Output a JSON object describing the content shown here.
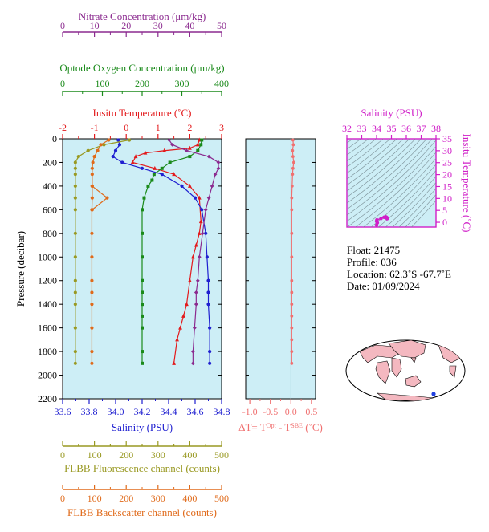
{
  "colors": {
    "nitrate": "#8b2a8f",
    "oxygen": "#1a8a1a",
    "temperature": "#e31a1c",
    "salinity": "#1f1fd0",
    "fluorescence": "#999922",
    "backscatter": "#e06a1a",
    "delta_t": "#f07070",
    "ts_axis": "#d01fc8",
    "panel_bg": "#cdeef6"
  },
  "chart_data": [
    {
      "type": "line",
      "name": "main-profile",
      "ylabel": "Pressure (decibar)",
      "ylim": [
        2200,
        0
      ],
      "yticks": [
        "0",
        "200",
        "400",
        "600",
        "800",
        "1000",
        "1200",
        "1400",
        "1600",
        "1800",
        "2000",
        "2200"
      ],
      "axes": {
        "nitrate": {
          "label": "Nitrate Concentration (μm/kg)",
          "ticks": [
            "0",
            "10",
            "20",
            "30",
            "40",
            "50"
          ],
          "lim": [
            0,
            50
          ]
        },
        "oxygen": {
          "label": "Optode Oxygen Concentration (μm/kg)",
          "ticks": [
            "0",
            "100",
            "200",
            "300",
            "400"
          ],
          "lim": [
            0,
            400
          ]
        },
        "temperature": {
          "label": "Insitu Temperature (˚C)",
          "ticks": [
            "-2",
            "-1",
            "0",
            "1",
            "2",
            "3"
          ],
          "lim": [
            -2,
            3
          ]
        },
        "salinity": {
          "label": "Salinity (PSU)",
          "ticks": [
            "33.6",
            "33.8",
            "34.0",
            "34.2",
            "34.4",
            "34.6",
            "34.8"
          ],
          "lim": [
            33.6,
            34.8
          ]
        },
        "fluorescence": {
          "label": "FLBB Fluorescence channel (counts)",
          "ticks": [
            "0",
            "50",
            "100",
            "150",
            "200",
            "250",
            "300",
            "350",
            "400",
            "450",
            "500"
          ],
          "lim": [
            0,
            500
          ]
        },
        "backscatter": {
          "label": "FLBB Backscatter channel (counts)",
          "ticks": [
            "0",
            "100",
            "200",
            "300",
            "400",
            "500"
          ],
          "lim": [
            0,
            500
          ]
        }
      },
      "series": [
        {
          "key": "temperature",
          "marker": "triangle",
          "x": [
            2.3,
            2.25,
            2.0,
            1.2,
            0.6,
            0.3,
            0.2,
            0.9,
            1.5,
            2.0,
            2.3,
            2.35,
            2.3,
            2.2,
            2.1,
            2.0,
            1.9,
            1.8,
            1.7,
            1.6,
            1.5
          ],
          "y": [
            10,
            50,
            80,
            100,
            120,
            150,
            200,
            250,
            300,
            400,
            500,
            700,
            800,
            900,
            1000,
            1200,
            1400,
            1500,
            1600,
            1700,
            1900
          ]
        },
        {
          "key": "salinity",
          "marker": "circle",
          "x": [
            34.02,
            34.03,
            34.0,
            33.98,
            34.05,
            34.2,
            34.35,
            34.5,
            34.6,
            34.65,
            34.68,
            34.69,
            34.7,
            34.7,
            34.7,
            34.71,
            34.71,
            34.71
          ],
          "y": [
            10,
            50,
            100,
            150,
            200,
            250,
            300,
            400,
            500,
            600,
            800,
            1000,
            1200,
            1300,
            1400,
            1600,
            1800,
            1900
          ]
        },
        {
          "key": "oxygen",
          "marker": "square",
          "x": [
            350,
            348,
            340,
            320,
            270,
            250,
            230,
            225,
            215,
            205,
            200,
            200,
            200,
            200,
            200,
            200,
            200,
            200,
            200,
            200
          ],
          "y": [
            10,
            50,
            100,
            150,
            200,
            250,
            300,
            350,
            400,
            500,
            600,
            800,
            1000,
            1200,
            1300,
            1400,
            1500,
            1600,
            1800,
            1900
          ]
        },
        {
          "key": "nitrate",
          "marker": "diamond",
          "x": [
            33.5,
            34.5,
            39,
            46,
            49,
            49,
            48,
            47,
            46,
            45,
            44,
            43,
            42.5,
            42,
            42,
            41.5,
            41,
            41
          ],
          "y": [
            10,
            50,
            100,
            150,
            200,
            250,
            300,
            400,
            500,
            600,
            800,
            1000,
            1200,
            1300,
            1400,
            1600,
            1800,
            1900
          ]
        },
        {
          "key": "fluorescence",
          "marker": "circle",
          "x": [
            210,
            130,
            80,
            50,
            40,
            40,
            40,
            40,
            40,
            40,
            40,
            40,
            40,
            40,
            40,
            40,
            40,
            40
          ],
          "y": [
            10,
            50,
            100,
            150,
            200,
            250,
            300,
            400,
            500,
            600,
            800,
            1000,
            1200,
            1300,
            1400,
            1600,
            1800,
            1900
          ]
        },
        {
          "key": "backscatter",
          "marker": "circle",
          "x": [
            145,
            120,
            110,
            100,
            95,
            93,
            93,
            93,
            93,
            92,
            92,
            92,
            92,
            92,
            92,
            92,
            92,
            92
          ],
          "y": [
            10,
            50,
            100,
            150,
            200,
            250,
            300,
            400,
            500,
            600,
            800,
            1000,
            1200,
            1300,
            1400,
            1600,
            1800,
            1900
          ]
        },
        {
          "key": "backscatter_spike",
          "marker": "circle",
          "x": [
            93,
            140,
            93
          ],
          "y": [
            400,
            500,
            600
          ]
        }
      ]
    },
    {
      "type": "line",
      "name": "delta-t",
      "xlabel": "ΔT= T<sup>Opt</sup> - T<sup>SBE</sup> (˚C)",
      "xticks": [
        "-1.0",
        "-0.5",
        "0.0",
        "0.5"
      ],
      "xlim": [
        -1.1,
        0.6
      ],
      "ylim": [
        2200,
        0
      ],
      "series": [
        {
          "name": "",
          "x": [
            0.05,
            0.06,
            0.04,
            0.05,
            0.07,
            0.05,
            0.04,
            0.03,
            0.02,
            0.02,
            0.02,
            0.02,
            0.02,
            0.02,
            0.02,
            0.02,
            0.02,
            0.02,
            0.02,
            0.02
          ],
          "y": [
            10,
            50,
            100,
            150,
            200,
            250,
            300,
            400,
            500,
            600,
            800,
            1000,
            1200,
            1300,
            1400,
            1500,
            1600,
            1700,
            1800,
            1900
          ]
        }
      ]
    },
    {
      "type": "scatter",
      "name": "ts-diagram",
      "xlabel": "Salinity (PSU)",
      "ylabel": "Insitu Temperature (˚C)",
      "xticks": [
        "32",
        "33",
        "34",
        "35",
        "36",
        "37",
        "38"
      ],
      "yticks": [
        "0",
        "5",
        "10",
        "15",
        "20",
        "25",
        "30",
        "35"
      ],
      "xlim": [
        32,
        38
      ],
      "ylim": [
        -2,
        35
      ],
      "series": [
        {
          "name": "",
          "x": [
            34.0,
            34.05,
            34.0,
            34.02,
            34.3,
            34.5,
            34.6,
            34.65,
            34.68,
            34.7,
            34.7,
            34.71
          ],
          "y": [
            -1.2,
            -0.2,
            0.4,
            1.0,
            1.6,
            2.1,
            2.3,
            2.2,
            2.0,
            1.9,
            1.7,
            1.5
          ]
        }
      ]
    }
  ],
  "info": {
    "float": "Float:  21475",
    "profile": "Profile:  036",
    "location": "Location:  62.3˚S  -67.7˚E",
    "date": "Date:  01/09/2024"
  }
}
